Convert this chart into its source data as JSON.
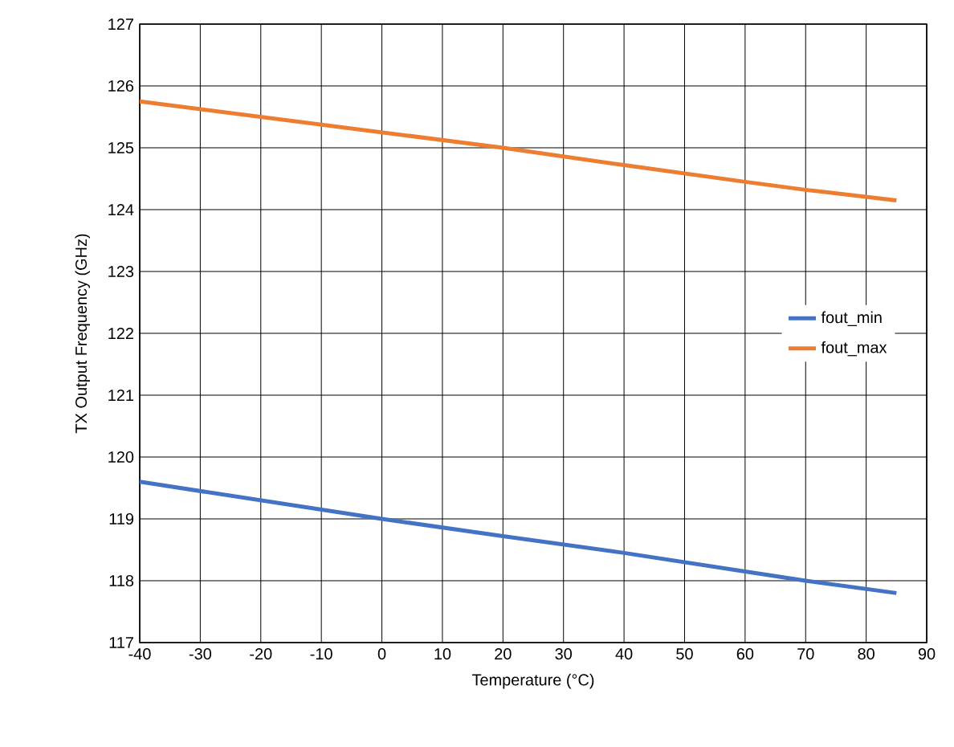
{
  "chart_data": {
    "type": "line",
    "xlabel": "Temperature  (°C)",
    "ylabel": "TX Output Frequency  (GHz)",
    "x": [
      -40,
      -20,
      0,
      20,
      40,
      60,
      70,
      85
    ],
    "series": [
      {
        "name": "fout_min",
        "color": "#4472c4",
        "values": [
          119.6,
          119.3,
          119.0,
          118.72,
          118.45,
          118.15,
          118.0,
          117.8
        ]
      },
      {
        "name": "fout_max",
        "color": "#ed7d31",
        "values": [
          125.75,
          125.5,
          125.25,
          125.0,
          124.72,
          124.45,
          124.32,
          124.15
        ]
      }
    ],
    "xlim": [
      -40,
      90
    ],
    "xticks": [
      -40,
      -30,
      -20,
      -10,
      0,
      10,
      20,
      30,
      40,
      50,
      60,
      70,
      80,
      90
    ],
    "ylim": [
      117,
      127
    ],
    "yticks": [
      117,
      118,
      119,
      120,
      121,
      122,
      123,
      124,
      125,
      126,
      127
    ],
    "grid": true,
    "legend": "right",
    "marker": "none",
    "line_style": "solid"
  }
}
